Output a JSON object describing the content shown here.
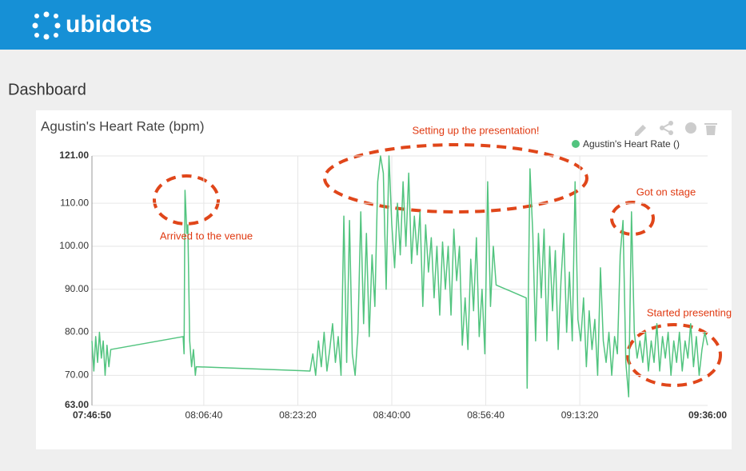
{
  "header": {
    "logo": "ubidots"
  },
  "page_title": "Dashboard",
  "chart_data": {
    "type": "line",
    "title": "Agustin's Heart Rate (bpm)",
    "annotations": [
      "Setting up the presentation!",
      "Arrived to the venue",
      "Got on stage",
      "Started presenting"
    ],
    "x": [
      "07:46:50",
      "07:47:10",
      "07:47:30",
      "07:47:50",
      "07:48:10",
      "07:48:30",
      "07:48:50",
      "07:49:10",
      "07:49:30",
      "07:49:50",
      "07:50:10",
      "08:03:00",
      "08:03:10",
      "08:03:20",
      "08:03:40",
      "08:03:50",
      "08:04:10",
      "08:04:30",
      "08:04:50",
      "08:05:10",
      "08:05:20",
      "08:25:30",
      "08:26:00",
      "08:26:30",
      "08:27:00",
      "08:27:30",
      "08:28:00",
      "08:28:30",
      "08:29:00",
      "08:29:30",
      "08:30:00",
      "08:30:30",
      "08:31:00",
      "08:31:30",
      "08:32:00",
      "08:32:30",
      "08:33:00",
      "08:33:30",
      "08:34:00",
      "08:34:30",
      "08:35:00",
      "08:35:30",
      "08:36:00",
      "08:36:30",
      "08:37:00",
      "08:37:30",
      "08:38:00",
      "08:38:30",
      "08:39:00",
      "08:39:30",
      "08:40:00",
      "08:40:30",
      "08:41:00",
      "08:41:30",
      "08:42:00",
      "08:42:30",
      "08:43:00",
      "08:43:30",
      "08:44:00",
      "08:44:30",
      "08:45:00",
      "08:45:30",
      "08:46:00",
      "08:46:30",
      "08:47:00",
      "08:47:30",
      "08:48:00",
      "08:48:30",
      "08:49:00",
      "08:49:30",
      "08:50:00",
      "08:50:30",
      "08:51:00",
      "08:51:30",
      "08:52:00",
      "08:52:30",
      "08:53:00",
      "08:53:30",
      "08:54:00",
      "08:54:30",
      "08:55:00",
      "08:55:30",
      "08:56:00",
      "08:56:30",
      "08:57:00",
      "08:57:30",
      "08:58:00",
      "08:58:30",
      "09:03:50",
      "09:04:00",
      "09:04:30",
      "09:05:00",
      "09:05:30",
      "09:06:00",
      "09:06:30",
      "09:07:00",
      "09:07:30",
      "09:08:00",
      "09:08:30",
      "09:09:00",
      "09:09:30",
      "09:10:00",
      "09:10:30",
      "09:11:00",
      "09:11:30",
      "09:12:00",
      "09:12:30",
      "09:13:00",
      "09:13:30",
      "09:14:00",
      "09:14:30",
      "09:15:00",
      "09:15:30",
      "09:16:00",
      "09:16:30",
      "09:17:00",
      "09:17:30",
      "09:18:00",
      "09:18:30",
      "09:19:00",
      "09:19:30",
      "09:20:00",
      "09:20:30",
      "09:21:00",
      "09:21:30",
      "09:22:00",
      "09:22:30",
      "09:23:00",
      "09:23:30",
      "09:24:00",
      "09:24:30",
      "09:25:00",
      "09:25:30",
      "09:26:00",
      "09:26:30",
      "09:27:00",
      "09:27:30",
      "09:28:00",
      "09:28:30",
      "09:29:00",
      "09:29:30",
      "09:30:00",
      "09:30:30",
      "09:31:00",
      "09:31:30",
      "09:32:00",
      "09:32:30",
      "09:33:00",
      "09:33:30",
      "09:34:00",
      "09:34:30",
      "09:35:00",
      "09:35:30",
      "09:36:00"
    ],
    "series": [
      {
        "name": "Agustin's Heart Rate ()",
        "color": "#52c47f",
        "values": [
          78,
          71,
          79,
          73,
          80,
          74,
          78,
          70,
          77,
          72,
          76,
          79,
          75,
          113,
          103,
          105,
          78,
          72,
          76,
          70,
          72,
          71,
          75,
          70,
          78,
          72,
          80,
          71,
          76,
          82,
          73,
          79,
          70,
          107,
          73,
          106,
          75,
          70,
          80,
          108,
          82,
          103,
          79,
          98,
          86,
          115,
          121,
          117,
          90,
          121,
          105,
          95,
          110,
          98,
          115,
          100,
          117,
          96,
          107,
          98,
          108,
          86,
          105,
          94,
          102,
          88,
          100,
          84,
          101,
          90,
          100,
          84,
          104,
          92,
          100,
          77,
          88,
          76,
          97,
          85,
          102,
          79,
          90,
          75,
          115,
          86,
          100,
          91,
          88,
          67,
          118,
          103,
          78,
          103,
          88,
          104,
          78,
          100,
          85,
          99,
          76,
          92,
          103,
          80,
          94,
          78,
          115,
          83,
          78,
          88,
          72,
          85,
          76,
          83,
          70,
          95,
          78,
          73,
          80,
          70,
          79,
          75,
          98,
          106,
          73,
          65,
          108,
          80,
          74,
          78,
          73,
          80,
          71,
          78,
          73,
          82,
          71,
          79,
          74,
          80,
          70,
          78,
          73,
          80,
          71,
          78,
          74,
          82,
          72,
          79,
          70,
          76,
          80,
          77
        ]
      }
    ],
    "xlim": [
      "07:46:50",
      "09:36:00"
    ],
    "xticks": [
      "07:46:50",
      "08:06:40",
      "08:23:20",
      "08:40:00",
      "08:56:40",
      "09:13:20",
      "09:36:00"
    ],
    "ylim": [
      63,
      121
    ],
    "yticks": [
      {
        "value": 63,
        "label": "63.00"
      },
      {
        "value": 70,
        "label": "70.00"
      },
      {
        "value": 80,
        "label": "80.00"
      },
      {
        "value": 90,
        "label": "90.00"
      },
      {
        "value": 100,
        "label": "100.00"
      },
      {
        "value": 110,
        "label": "110.00"
      },
      {
        "value": 121,
        "label": "121.00"
      }
    ],
    "grid": true
  }
}
